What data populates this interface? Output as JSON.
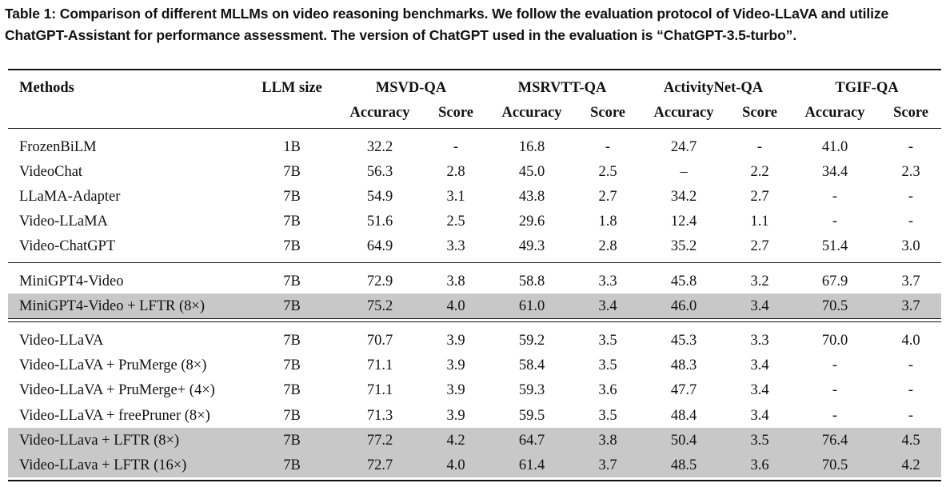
{
  "caption": "Table 1: Comparison of different MLLMs on video reasoning benchmarks. We follow the evaluation protocol of Video-LLaVA and utilize ChatGPT-Assistant for performance assessment. The version of ChatGPT used in the evaluation is “ChatGPT-3.5-turbo”.",
  "header": {
    "methods": "Methods",
    "llm_size": "LLM size",
    "groups": [
      "MSVD-QA",
      "MSRVTT-QA",
      "ActivityNet-QA",
      "TGIF-QA"
    ],
    "accuracy": "Accuracy",
    "score": "Score"
  },
  "highlight_color": "#c8c8c8",
  "rows": [
    {
      "method": "FrozenBiLM",
      "size": "1B",
      "vals": [
        "32.2",
        "-",
        "16.8",
        "-",
        "24.7",
        "-",
        "41.0",
        "-"
      ]
    },
    {
      "method": "VideoChat",
      "size": "7B",
      "vals": [
        "56.3",
        "2.8",
        "45.0",
        "2.5",
        "–",
        "2.2",
        "34.4",
        "2.3"
      ]
    },
    {
      "method": "LLaMA-Adapter",
      "size": "7B",
      "vals": [
        "54.9",
        "3.1",
        "43.8",
        "2.7",
        "34.2",
        "2.7",
        "-",
        "-"
      ]
    },
    {
      "method": "Video-LLaMA",
      "size": "7B",
      "vals": [
        "51.6",
        "2.5",
        "29.6",
        "1.8",
        "12.4",
        "1.1",
        "-",
        "-"
      ]
    },
    {
      "method": "Video-ChatGPT",
      "size": "7B",
      "vals": [
        "64.9",
        "3.3",
        "49.3",
        "2.8",
        "35.2",
        "2.7",
        "51.4",
        "3.0"
      ]
    },
    {
      "method": "MiniGPT4-Video",
      "size": "7B",
      "vals": [
        "72.9",
        "3.8",
        "58.8",
        "3.3",
        "45.8",
        "3.2",
        "67.9",
        "3.7"
      ]
    },
    {
      "method": "MiniGPT4-Video + LFTR (8×)",
      "size": "7B",
      "vals": [
        "75.2",
        "4.0",
        "61.0",
        "3.4",
        "46.0",
        "3.4",
        "70.5",
        "3.7"
      ],
      "highlight": true
    },
    {
      "method": "Video-LLaVA",
      "size": "7B",
      "vals": [
        "70.7",
        "3.9",
        "59.2",
        "3.5",
        "45.3",
        "3.3",
        "70.0",
        "4.0"
      ]
    },
    {
      "method": "Video-LLaVA + PruMerge (8×)",
      "size": "7B",
      "vals": [
        "71.1",
        "3.9",
        "58.4",
        "3.5",
        "48.3",
        "3.4",
        "-",
        "-"
      ]
    },
    {
      "method": "Video-LLaVA + PruMerge+ (4×)",
      "size": "7B",
      "vals": [
        "71.1",
        "3.9",
        "59.3",
        "3.6",
        "47.7",
        "3.4",
        "-",
        "-"
      ]
    },
    {
      "method": "Video-LLaVA + freePruner (8×)",
      "size": "7B",
      "vals": [
        "71.3",
        "3.9",
        "59.5",
        "3.5",
        "48.4",
        "3.4",
        "-",
        "-"
      ]
    },
    {
      "method": "Video-LLava + LFTR (8×)",
      "size": "7B",
      "vals": [
        "77.2",
        "4.2",
        "64.7",
        "3.8",
        "50.4",
        "3.5",
        "76.4",
        "4.5"
      ],
      "highlight": true
    },
    {
      "method": "Video-LLava + LFTR (16×)",
      "size": "7B",
      "vals": [
        "72.7",
        "4.0",
        "61.4",
        "3.7",
        "48.5",
        "3.6",
        "70.5",
        "4.2"
      ],
      "highlight": true
    }
  ]
}
